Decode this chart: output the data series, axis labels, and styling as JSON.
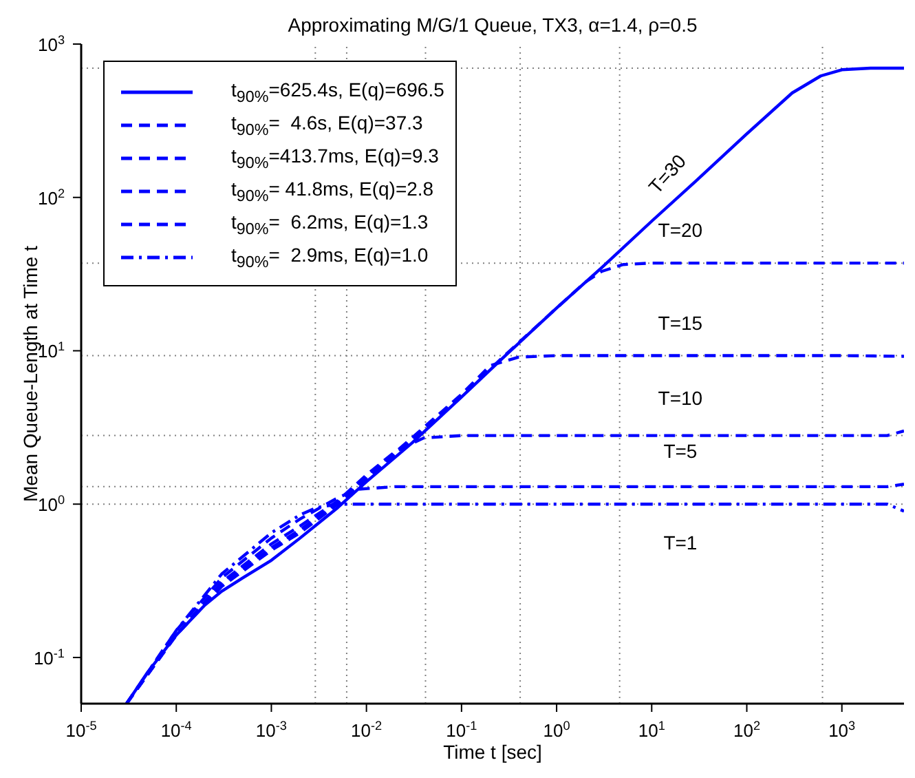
{
  "chart_data": {
    "type": "line",
    "title": "Approximating M/G/1 Queue, TX3, α=1.4, ρ=0.5",
    "xlabel": "Time t [sec]",
    "ylabel": "Mean Queue-Length at Time t",
    "log": "xy",
    "xlim": [
      1e-05,
      4500
    ],
    "ylim": [
      0.05,
      1000
    ],
    "xticks": [
      {
        "value": 1e-05,
        "label": "10$^{-5}$"
      },
      {
        "value": 0.0001,
        "label": "10$^{-4}$"
      },
      {
        "value": 0.001,
        "label": "10$^{-3}$"
      },
      {
        "value": 0.01,
        "label": "10$^{-2}$"
      },
      {
        "value": 0.1,
        "label": "10$^{-1}$"
      },
      {
        "value": 1,
        "label": "10$^{0}$"
      },
      {
        "value": 10,
        "label": "10$^{1}$"
      },
      {
        "value": 100,
        "label": "10$^{2}$"
      },
      {
        "value": 1000,
        "label": "10$^{3}$"
      }
    ],
    "yticks": [
      {
        "value": 0.1,
        "label": "10$^{-1}$"
      },
      {
        "value": 1,
        "label": "10$^{0}$"
      },
      {
        "value": 10,
        "label": "10$^{1}$"
      },
      {
        "value": 100,
        "label": "10$^{2}$"
      },
      {
        "value": 1000,
        "label": "10$^{3}$"
      }
    ],
    "legend": "top left",
    "marker": "none",
    "series": [
      {
        "name": "t$_{90%}$=625.4s, E(q)=696.5",
        "color": "#0000ff",
        "line_style": "solid",
        "x": [
          3e-05,
          5e-05,
          0.0001,
          0.0002,
          0.0003,
          0.0005,
          0.001,
          0.002,
          0.005,
          0.01,
          0.03,
          0.1,
          0.3,
          1,
          3,
          10,
          30,
          100,
          300,
          600,
          1000,
          2000,
          4500
        ],
        "values": [
          0.05,
          0.08,
          0.14,
          0.22,
          0.27,
          0.33,
          0.43,
          0.6,
          0.95,
          1.4,
          2.5,
          5,
          9.5,
          19,
          35,
          70,
          130,
          260,
          480,
          620,
          680,
          696,
          696.5
        ]
      },
      {
        "name": "t$_{90%}$=  4.6s, E(q)=37.3",
        "color": "#0000ff",
        "line_style": "dashed",
        "x": [
          3e-05,
          0.0001,
          0.0003,
          0.001,
          0.002,
          0.005,
          0.01,
          0.03,
          0.1,
          0.3,
          1,
          2,
          3,
          5,
          10,
          100,
          1000,
          4500
        ],
        "values": [
          0.05,
          0.14,
          0.29,
          0.5,
          0.65,
          1,
          1.45,
          2.6,
          5.1,
          9.6,
          19,
          28,
          33,
          36.5,
          37.3,
          37.3,
          37.3,
          37.3
        ]
      },
      {
        "name": "t$_{90%}$=413.7ms, E(q)=9.3",
        "color": "#0000ff",
        "line_style": "dashed",
        "x": [
          3e-05,
          0.0001,
          0.0003,
          0.001,
          0.002,
          0.005,
          0.01,
          0.03,
          0.1,
          0.2,
          0.4,
          1,
          10,
          100,
          1000,
          4500
        ],
        "values": [
          0.05,
          0.14,
          0.3,
          0.52,
          0.68,
          1.02,
          1.5,
          2.7,
          5.2,
          8,
          9.1,
          9.3,
          9.3,
          9.3,
          9.3,
          9.2
        ]
      },
      {
        "name": "t$_{90%}$= 41.8ms, E(q)=2.8",
        "color": "#0000ff",
        "line_style": "dashed",
        "x": [
          3e-05,
          0.0001,
          0.0003,
          0.001,
          0.002,
          0.005,
          0.01,
          0.02,
          0.04,
          0.1,
          1,
          10,
          100,
          1000,
          3000,
          4500
        ],
        "values": [
          0.05,
          0.14,
          0.31,
          0.55,
          0.72,
          1.05,
          1.55,
          2.2,
          2.7,
          2.8,
          2.8,
          2.8,
          2.8,
          2.8,
          2.8,
          3.0
        ]
      },
      {
        "name": "t$_{90%}$=  6.2ms, E(q)=1.3",
        "color": "#0000ff",
        "line_style": "dashed",
        "x": [
          3e-05,
          0.0001,
          0.0003,
          0.001,
          0.002,
          0.005,
          0.008,
          0.02,
          0.1,
          1,
          10,
          100,
          1000,
          3000,
          4500
        ],
        "values": [
          0.05,
          0.15,
          0.33,
          0.6,
          0.8,
          1.1,
          1.25,
          1.3,
          1.3,
          1.3,
          1.3,
          1.3,
          1.3,
          1.3,
          1.35
        ]
      },
      {
        "name": "t$_{90%}$=  2.9ms, E(q)=1.0",
        "color": "#0000ff",
        "line_style": "dashdot",
        "x": [
          3e-05,
          0.0001,
          0.0003,
          0.001,
          0.002,
          0.003,
          0.005,
          0.01,
          0.1,
          1,
          10,
          100,
          1000,
          3000,
          4500
        ],
        "values": [
          0.05,
          0.15,
          0.35,
          0.65,
          0.85,
          0.95,
          1.0,
          1.0,
          1.0,
          1.0,
          1.0,
          1.0,
          1.0,
          1.0,
          0.9
        ]
      }
    ],
    "ref_lines": [
      {
        "axis": "y",
        "value": 696.5,
        "color": "#808080",
        "line_style": "dotted"
      },
      {
        "axis": "y",
        "value": 37.3,
        "color": "#808080",
        "line_style": "dotted"
      },
      {
        "axis": "y",
        "value": 9.3,
        "color": "#808080",
        "line_style": "dotted"
      },
      {
        "axis": "y",
        "value": 2.8,
        "color": "#808080",
        "line_style": "dotted"
      },
      {
        "axis": "y",
        "value": 1.3,
        "color": "#808080",
        "line_style": "dotted"
      },
      {
        "axis": "y",
        "value": 1.0,
        "color": "#808080",
        "line_style": "dotted"
      },
      {
        "axis": "x",
        "value": 625.4,
        "color": "#808080",
        "line_style": "dotted"
      },
      {
        "axis": "x",
        "value": 4.6,
        "color": "#808080",
        "line_style": "dotted"
      },
      {
        "axis": "x",
        "value": 0.4137,
        "color": "#808080",
        "line_style": "dotted"
      },
      {
        "axis": "x",
        "value": 0.0418,
        "color": "#808080",
        "line_style": "dotted"
      },
      {
        "axis": "x",
        "value": 0.0062,
        "color": "#808080",
        "line_style": "dotted"
      },
      {
        "axis": "x",
        "value": 0.0029,
        "color": "#808080",
        "line_style": "dotted"
      }
    ],
    "annotations": [
      "T=30",
      "T=20",
      "T=15",
      "T=10",
      "T=5",
      "T=1"
    ]
  }
}
